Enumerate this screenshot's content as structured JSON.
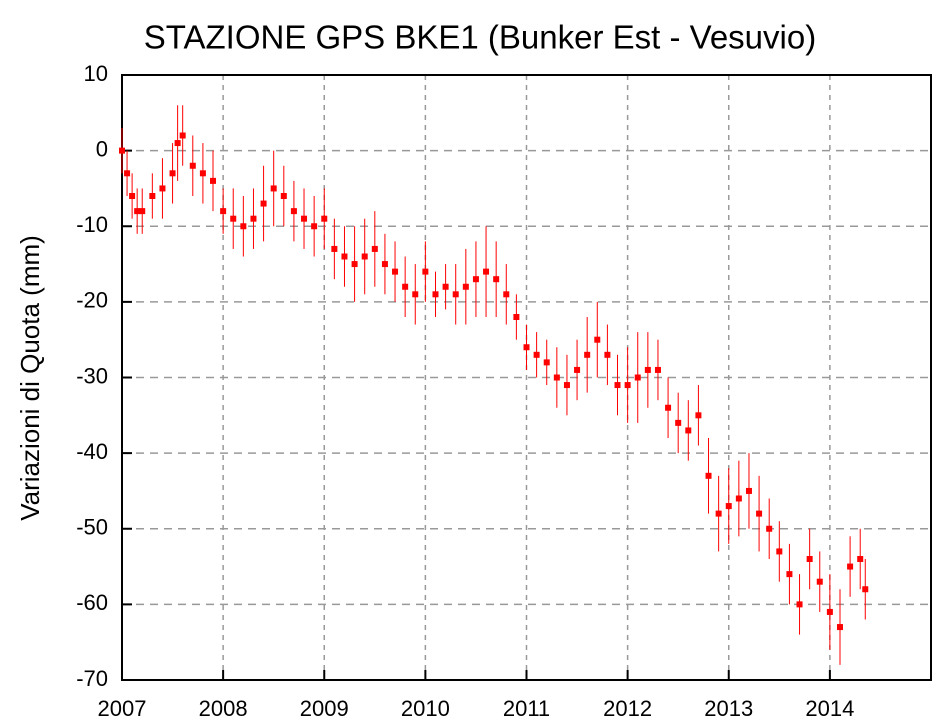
{
  "chart_data": {
    "type": "scatter",
    "title": "STAZIONE GPS BKE1 (Bunker Est - Vesuvio)",
    "y_label": "Variazioni di Quota (mm)",
    "color": "#ff0000",
    "x": [
      2007.0,
      2007.05,
      2007.1,
      2007.15,
      2007.2,
      2007.3,
      2007.4,
      2007.5,
      2007.55,
      2007.6,
      2007.7,
      2007.8,
      2007.9,
      2008.0,
      2008.1,
      2008.2,
      2008.3,
      2008.4,
      2008.5,
      2008.6,
      2008.7,
      2008.8,
      2008.9,
      2009.0,
      2009.1,
      2009.2,
      2009.3,
      2009.4,
      2009.5,
      2009.6,
      2009.7,
      2009.8,
      2009.9,
      2010.0,
      2010.1,
      2010.2,
      2010.3,
      2010.4,
      2010.5,
      2010.6,
      2010.7,
      2010.8,
      2010.9,
      2011.0,
      2011.1,
      2011.2,
      2011.3,
      2011.4,
      2011.5,
      2011.6,
      2011.7,
      2011.8,
      2011.9,
      2012.0,
      2012.1,
      2012.2,
      2012.3,
      2012.4,
      2012.5,
      2012.6,
      2012.7,
      2012.8,
      2012.9,
      2013.0,
      2013.1,
      2013.2,
      2013.3,
      2013.4,
      2013.5,
      2013.6,
      2013.7,
      2013.8,
      2013.9,
      2014.0,
      2014.1,
      2014.2,
      2014.3,
      2014.35
    ],
    "values": [
      0,
      -3,
      -6,
      -8,
      -8,
      -6,
      -5,
      -3,
      1,
      2,
      -2,
      -3,
      -4,
      -8,
      -9,
      -10,
      -9,
      -7,
      -5,
      -6,
      -8,
      -9,
      -10,
      -9,
      -13,
      -14,
      -15,
      -14,
      -13,
      -15,
      -16,
      -18,
      -19,
      -16,
      -19,
      -18,
      -19,
      -18,
      -17,
      -16,
      -17,
      -19,
      -22,
      -26,
      -27,
      -28,
      -30,
      -31,
      -29,
      -27,
      -25,
      -27,
      -31,
      -31,
      -30,
      -29,
      -29,
      -34,
      -36,
      -37,
      -35,
      -43,
      -48,
      -47,
      -46,
      -45,
      -48,
      -50,
      -53,
      -56,
      -60,
      -54,
      -57,
      -61,
      -63,
      -55,
      -54,
      -58
    ],
    "errors": [
      3,
      3,
      3,
      3,
      3,
      3,
      4,
      4,
      5,
      4,
      4,
      4,
      4,
      3,
      4,
      4,
      4,
      5,
      5,
      4,
      4,
      4,
      4,
      4,
      4,
      4,
      5,
      5,
      5,
      4,
      4,
      4,
      4,
      4,
      3,
      3,
      4,
      5,
      5,
      6,
      5,
      4,
      3,
      3,
      3,
      3,
      4,
      4,
      4,
      5,
      5,
      4,
      4,
      5,
      6,
      5,
      4,
      4,
      4,
      4,
      4,
      5,
      5,
      5,
      5,
      5,
      5,
      4,
      4,
      4,
      4,
      4,
      4,
      5,
      5,
      4,
      4,
      4
    ],
    "xlim": [
      2007,
      2015
    ],
    "xticks": [
      2007,
      2008,
      2009,
      2010,
      2011,
      2012,
      2013,
      2014
    ],
    "ylim": [
      -70,
      10
    ],
    "yticks": [
      -70,
      -60,
      -50,
      -40,
      -30,
      -20,
      -10,
      0,
      10
    ],
    "grid": true
  }
}
